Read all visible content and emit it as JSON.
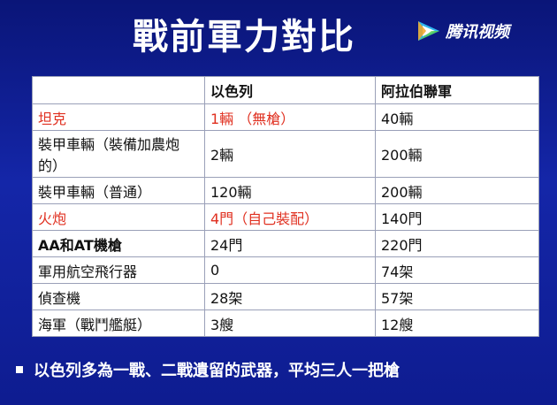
{
  "title": "戰前軍力對比",
  "logo": {
    "text": "腾讯视频",
    "icon": "tencent-video-play-icon"
  },
  "table": {
    "headers": [
      "",
      "以色列",
      "阿拉伯聯軍"
    ],
    "rows": [
      {
        "cells": [
          "坦克",
          "1輛 （無槍）",
          "40輛"
        ],
        "highlight": true
      },
      {
        "cells": [
          "裝甲車輛（裝備加農炮的）",
          "2輛",
          "200輛"
        ],
        "highlight": false
      },
      {
        "cells": [
          "裝甲車輛（普通）",
          "120輛",
          "200輛"
        ],
        "highlight": false
      },
      {
        "cells": [
          "火炮",
          "4門（自己裝配）",
          "140門"
        ],
        "highlight": true
      },
      {
        "cells": [
          "AA和AT機槍",
          "24門",
          "220門"
        ],
        "highlight": false
      },
      {
        "cells": [
          "軍用航空飛行器",
          "0",
          "74架"
        ],
        "highlight": false
      },
      {
        "cells": [
          "偵查機",
          "28架",
          "57架"
        ],
        "highlight": false
      },
      {
        "cells": [
          "海軍（戰鬥艦艇）",
          "3艘",
          "12艘"
        ],
        "highlight": false
      }
    ]
  },
  "bullet": "以色列多為一戰、二戰遺留的武器，平均三人一把槍",
  "colors": {
    "background": "#1426a8",
    "highlight_text": "#e03020",
    "table_bg": "#ffffff"
  }
}
